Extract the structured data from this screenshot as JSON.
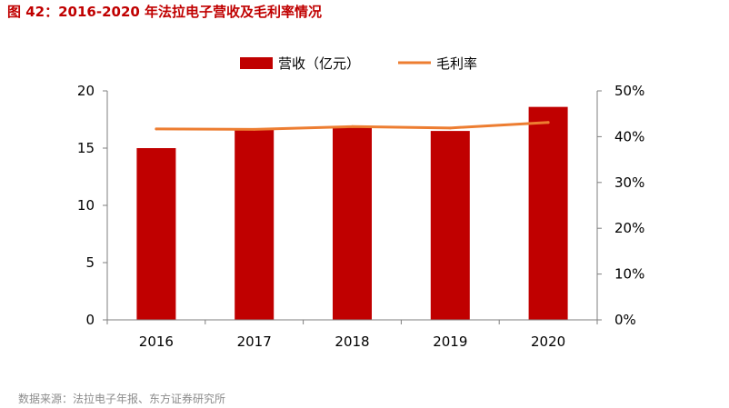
{
  "figure": {
    "title": "图 42：2016-2020 年法拉电子营收及毛利率情况",
    "source": "数据来源：法拉电子年报、东方证券研究所"
  },
  "colors": {
    "bar": "#C00000",
    "line": "#ED7D31",
    "axis": "#7f7f7f",
    "text": "#000000"
  },
  "chart_data": {
    "type": "bar",
    "categories": [
      "2016",
      "2017",
      "2018",
      "2019",
      "2020"
    ],
    "series": [
      {
        "name": "营收（亿元）",
        "type": "bar",
        "axis": "left",
        "values": [
          15.0,
          16.6,
          16.9,
          16.5,
          18.6
        ]
      },
      {
        "name": "毛利率",
        "type": "line",
        "axis": "right",
        "values": [
          41.7,
          41.6,
          42.2,
          41.9,
          43.1
        ]
      }
    ],
    "ylim": [
      0,
      20
    ],
    "yticks": [
      "0",
      "5",
      "10",
      "15",
      "20"
    ],
    "y2lim": [
      0,
      50
    ],
    "y2ticks": [
      "0%",
      "10%",
      "20%",
      "30%",
      "40%",
      "50%"
    ],
    "legend_position": "top-center",
    "grid": false
  }
}
